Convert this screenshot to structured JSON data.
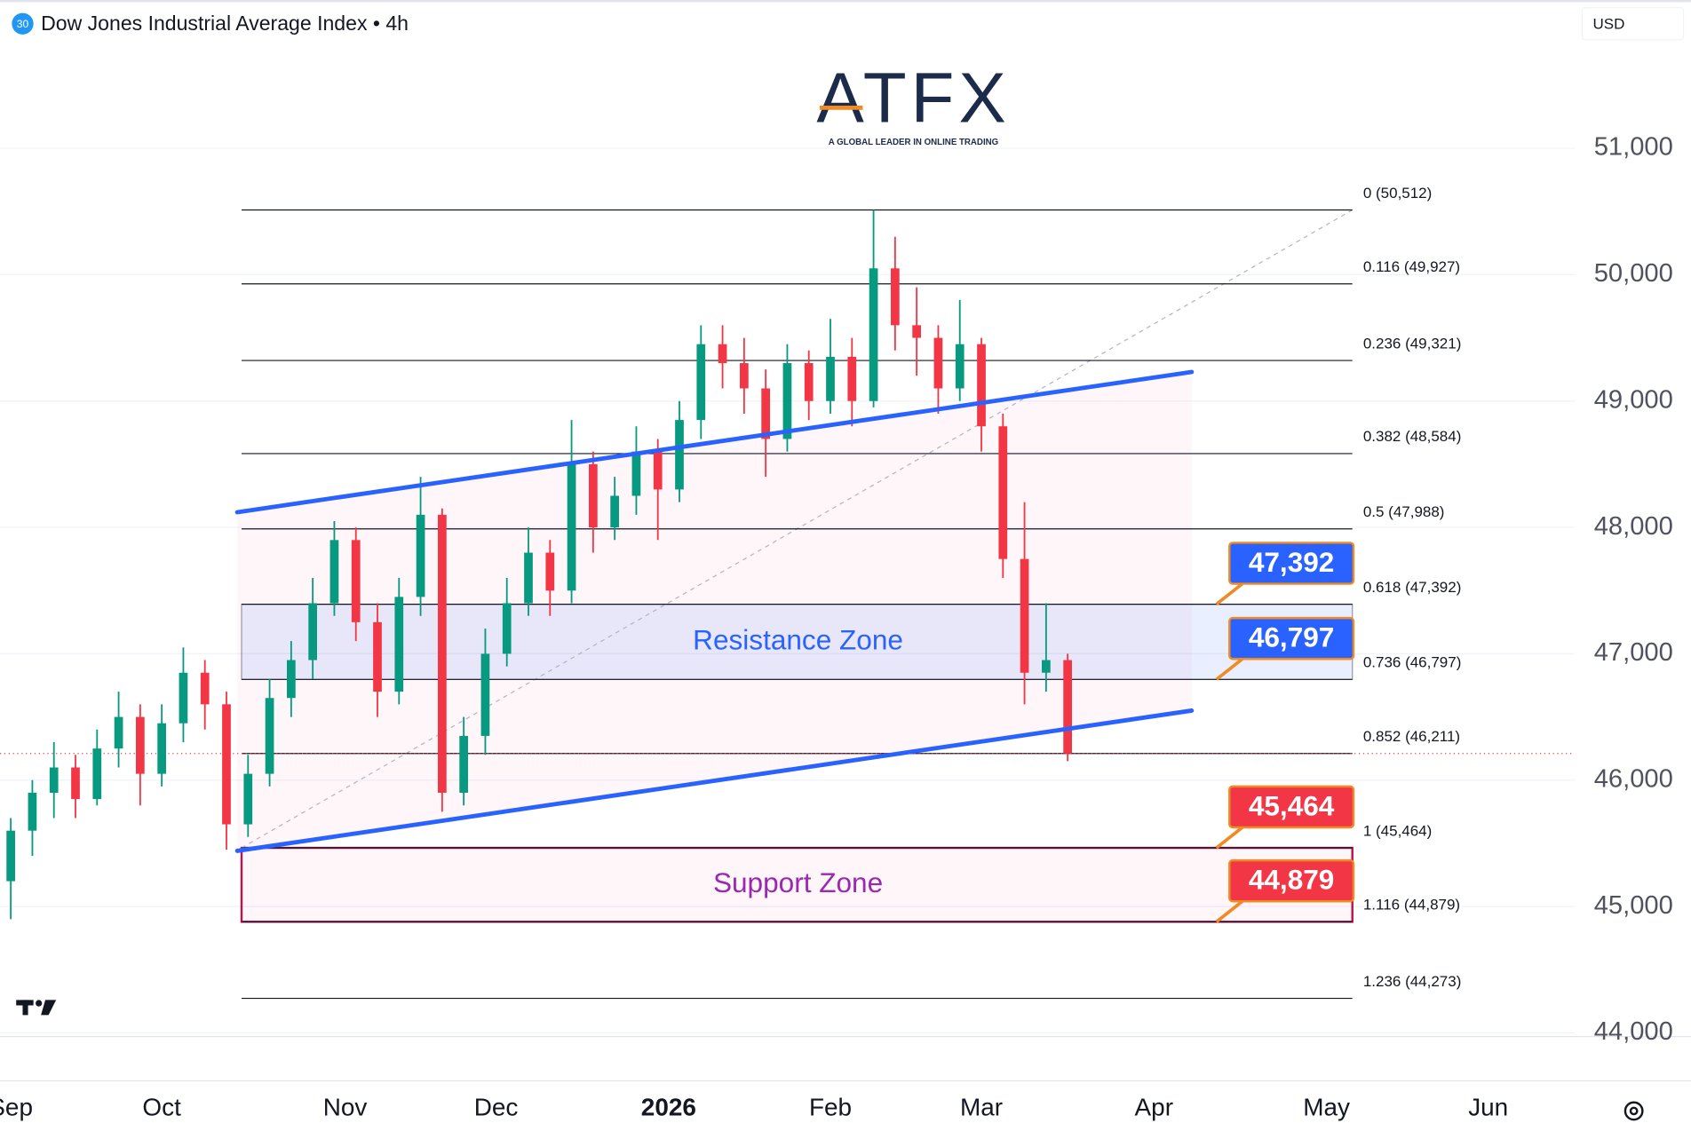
{
  "chart_data": {
    "type": "candlestick",
    "symbol_badge": "30",
    "title": "Dow Jones Industrial Average Index • 4h",
    "currency": "USD",
    "logo": {
      "name": "ATFX",
      "tagline": "A GLOBAL LEADER IN ONLINE TRADING"
    },
    "up_color": "#089981",
    "down_color": "#f23645",
    "open": [
      45200,
      45600,
      45900,
      46100,
      45850,
      46250,
      46500,
      46050,
      46450,
      46850,
      46600,
      45650,
      46050,
      46650,
      46950,
      47400,
      47900,
      47250,
      46700,
      47450,
      48100,
      45900,
      46350,
      47000,
      47400,
      47800,
      47500,
      48500,
      48000,
      48250,
      48600,
      48300,
      48850,
      49450,
      49300,
      49100,
      48700,
      49300,
      49000,
      49350,
      49000,
      50050,
      49600,
      49500,
      49100,
      49450,
      48800,
      47750,
      46850,
      46950
    ],
    "high": [
      45700,
      46000,
      46300,
      46200,
      46400,
      46700,
      46600,
      46600,
      47050,
      46950,
      46700,
      46200,
      46800,
      47100,
      47600,
      48050,
      48000,
      47400,
      47600,
      48400,
      48150,
      46500,
      47200,
      47600,
      48000,
      47900,
      48850,
      48600,
      48400,
      48800,
      48700,
      49000,
      49600,
      49600,
      49500,
      49250,
      49450,
      49400,
      49650,
      49500,
      50512,
      50300,
      49900,
      49600,
      49800,
      49500,
      48900,
      48200,
      47400,
      47000
    ],
    "low": [
      44900,
      45400,
      45700,
      45700,
      45800,
      46100,
      45800,
      45950,
      46300,
      46400,
      45450,
      45550,
      45950,
      46500,
      46800,
      47300,
      47100,
      46500,
      46600,
      47300,
      45750,
      45800,
      46200,
      46900,
      47300,
      47300,
      47400,
      47800,
      47900,
      48100,
      47900,
      48200,
      48700,
      49100,
      48900,
      48400,
      48600,
      48850,
      48900,
      48800,
      48950,
      49400,
      49200,
      48900,
      49000,
      48600,
      47600,
      46600,
      46700,
      46150
    ],
    "close": [
      45600,
      45900,
      46100,
      45850,
      46250,
      46500,
      46050,
      46450,
      46850,
      46600,
      45650,
      46050,
      46650,
      46950,
      47400,
      47900,
      47250,
      46700,
      47450,
      48100,
      45900,
      46350,
      47000,
      47400,
      47800,
      47500,
      48500,
      48000,
      48250,
      48600,
      48300,
      48850,
      49450,
      49300,
      49100,
      48700,
      49300,
      49000,
      49350,
      49000,
      50050,
      49600,
      49500,
      49100,
      49450,
      48800,
      47750,
      46850,
      46950,
      46211
    ],
    "last_price": 46211,
    "xlim": [
      -0.5,
      72.5
    ],
    "xticks": [
      {
        "value": 0,
        "label": "Sep"
      },
      {
        "value": 7,
        "label": "Oct"
      },
      {
        "value": 15.5,
        "label": "Nov"
      },
      {
        "value": 22.5,
        "label": "Dec"
      },
      {
        "value": 30.5,
        "label": "2026"
      },
      {
        "value": 38,
        "label": "Feb"
      },
      {
        "value": 45,
        "label": "Mar"
      },
      {
        "value": 53,
        "label": "Apr"
      },
      {
        "value": 61,
        "label": "May"
      },
      {
        "value": 68.5,
        "label": "Jun"
      }
    ],
    "ylim": [
      43970,
      51790
    ],
    "yticks": [
      {
        "value": 44000,
        "label": "44,000"
      },
      {
        "value": 45000,
        "label": "45,000"
      },
      {
        "value": 46000,
        "label": "46,000"
      },
      {
        "value": 47000,
        "label": "47,000"
      },
      {
        "value": 48000,
        "label": "48,000"
      },
      {
        "value": 49000,
        "label": "49,000"
      },
      {
        "value": 50000,
        "label": "50,000"
      },
      {
        "value": 51000,
        "label": "51,000"
      }
    ],
    "grid": true,
    "fib": {
      "start": 10.7,
      "end": 62.2,
      "anchor_low": 45464,
      "anchor_high": 50512,
      "levels": [
        {
          "ratio": 0,
          "value": 50512,
          "label": "0 (50,512)"
        },
        {
          "ratio": 0.116,
          "value": 49927,
          "label": "0.116 (49,927)"
        },
        {
          "ratio": 0.236,
          "value": 49321,
          "label": "0.236 (49,321)"
        },
        {
          "ratio": 0.382,
          "value": 48584,
          "label": "0.382 (48,584)"
        },
        {
          "ratio": 0.5,
          "value": 47988,
          "label": "0.5 (47,988)"
        },
        {
          "ratio": 0.618,
          "value": 47392,
          "label": "0.618 (47,392)"
        },
        {
          "ratio": 0.736,
          "value": 46797,
          "label": "0.736 (46,797)"
        },
        {
          "ratio": 0.852,
          "value": 46211,
          "label": "0.852 (46,211)"
        },
        {
          "ratio": 1,
          "value": 45464,
          "label": "1 (45,464)"
        },
        {
          "ratio": 1.116,
          "value": 44879,
          "label": "1.116 (44,879)"
        },
        {
          "ratio": 1.236,
          "value": 44273,
          "label": "1.236 (44,273)"
        }
      ]
    },
    "channel": {
      "color": "#2962ff",
      "x": [
        10.5,
        54.75
      ],
      "upper": [
        48120,
        49230
      ],
      "lower": [
        45440,
        46550
      ]
    },
    "zones": [
      {
        "name": "Resistance Zone",
        "top": 47392,
        "bottom": 46797,
        "color": "#2962ff"
      },
      {
        "name": "Support Zone",
        "top": 45464,
        "bottom": 44879,
        "color": "#9c27b0"
      }
    ],
    "price_tags": [
      {
        "value": 47392,
        "label": "47,392",
        "color": "#2962ff"
      },
      {
        "value": 46797,
        "label": "46,797",
        "color": "#2962ff"
      },
      {
        "value": 45464,
        "label": "45,464",
        "color": "#f23645"
      },
      {
        "value": 44879,
        "label": "44,879",
        "color": "#f23645"
      }
    ]
  }
}
